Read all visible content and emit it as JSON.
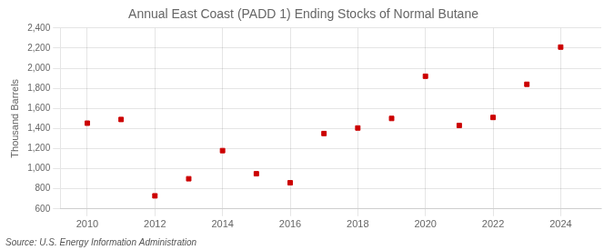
{
  "chart_data": {
    "type": "scatter",
    "title": "Annual East Coast (PADD 1) Ending Stocks of Normal Butane",
    "ylabel": "Thousand Barrels",
    "annotations": [
      "Source: U.S. Energy Information Administration"
    ],
    "x": [
      2010,
      2011,
      2012,
      2013,
      2014,
      2015,
      2016,
      2017,
      2018,
      2019,
      2020,
      2021,
      2022,
      2023,
      2024
    ],
    "values": [
      1453,
      1490,
      730,
      900,
      1180,
      950,
      860,
      1350,
      1405,
      1500,
      1920,
      1430,
      1510,
      1840,
      2210
    ],
    "color": "#cc0000",
    "marker": "square",
    "xlim": [
      2009.2,
      2025.2
    ],
    "xticks": [
      2010,
      2012,
      2014,
      2016,
      2018,
      2020,
      2022,
      2024
    ],
    "ylim": [
      600,
      2400
    ],
    "yticks": [
      600,
      800,
      {
        "value": 1000,
        "label": "1,000"
      },
      {
        "value": 1200,
        "label": "1,200"
      },
      {
        "value": 1400,
        "label": "1,400"
      },
      {
        "value": 1600,
        "label": "1,600"
      },
      {
        "value": 1800,
        "label": "1,800"
      },
      {
        "value": 2000,
        "label": "2,000"
      },
      {
        "value": 2200,
        "label": "2,200"
      },
      {
        "value": 2400,
        "label": "2,400"
      }
    ],
    "grid": true
  }
}
